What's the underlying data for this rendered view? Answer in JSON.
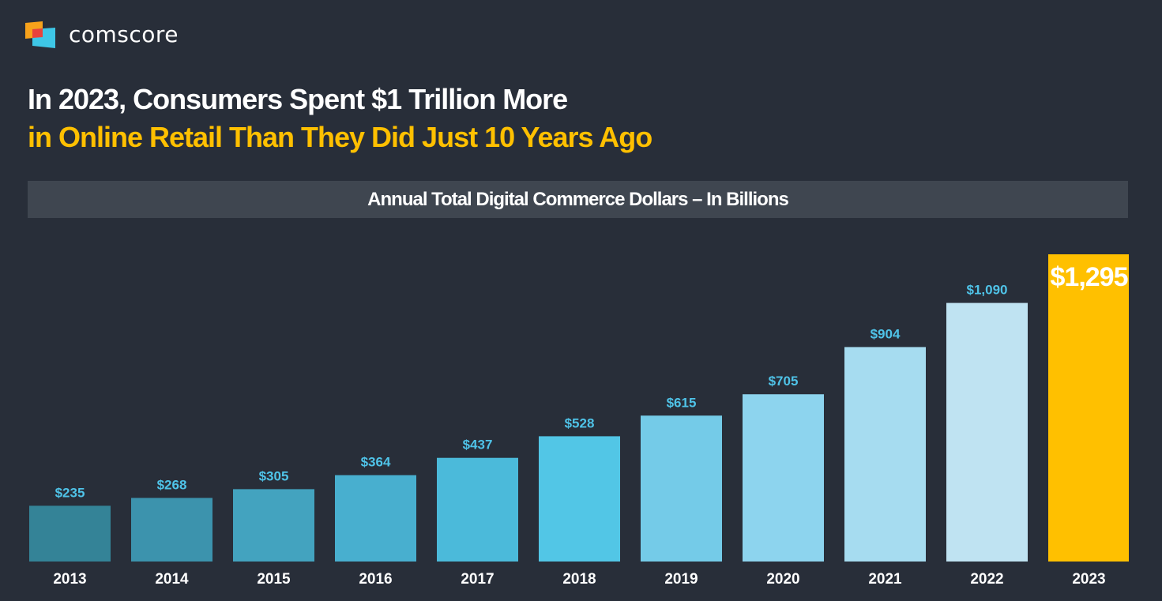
{
  "brand": {
    "name": "comscore",
    "logo_colors": [
      "#f7a21b",
      "#e8423b",
      "#3ec6e6"
    ]
  },
  "headline": {
    "line1": "In 2023, Consumers Spent $1 Trillion More",
    "line2": "in Online Retail Than They Did Just 10 Years Ago"
  },
  "chart_data": {
    "type": "bar",
    "title": "Annual Total Digital Commerce Dollars – In Billions",
    "categories": [
      "2013",
      "2014",
      "2015",
      "2016",
      "2017",
      "2018",
      "2019",
      "2020",
      "2021",
      "2022",
      "2023"
    ],
    "values": [
      235,
      268,
      305,
      364,
      437,
      528,
      615,
      705,
      904,
      1090,
      1295
    ],
    "data_labels": [
      "$235",
      "$268",
      "$305",
      "$364",
      "$437",
      "$528",
      "$615",
      "$705",
      "$904",
      "$1,090",
      "$1,295"
    ],
    "colors": [
      "#348397",
      "#3c93ad",
      "#43a3bf",
      "#48afcf",
      "#4bbada",
      "#52c6e6",
      "#74cbe8",
      "#8dd4ee",
      "#a6dcf0",
      "#bfe3f2",
      "#ffc000"
    ],
    "label_color": "#4fc3e8",
    "highlight_label_color": "#ffffff",
    "ylim": [
      0,
      1295
    ],
    "grid": false,
    "background": "#282e39"
  }
}
